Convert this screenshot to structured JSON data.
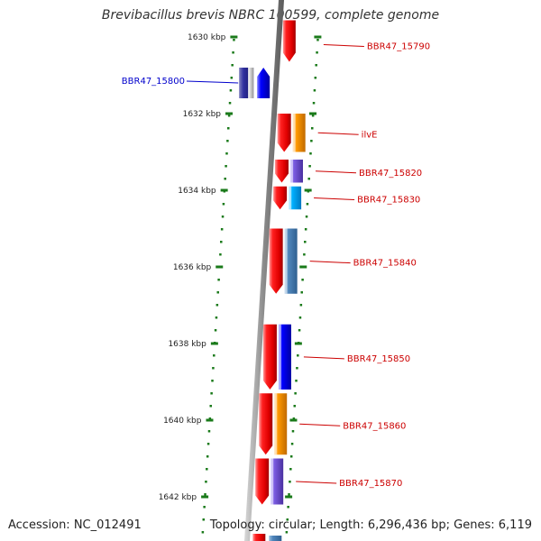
{
  "title": "Brevibacillus brevis NBRC 100599, complete genome",
  "footer": {
    "accession": "Accession: NC_012491",
    "summary": "Topology: circular; Length: 6,296,436 bp; Genes: 6,119"
  },
  "ticks": [
    "1630 kbp",
    "1632 kbp",
    "1634 kbp",
    "1636 kbp",
    "1638 kbp",
    "1640 kbp",
    "1642 kbp"
  ],
  "genes": [
    {
      "label": "BBR47_15790",
      "strand": "reverse",
      "color": "#cc0000",
      "start_kbp": 1629.8,
      "end_kbp": 1630.6
    },
    {
      "label": "BBR47_15800",
      "strand": "reverse",
      "color": "#0000cc",
      "start_kbp": 1630.8,
      "end_kbp": 1631.6
    },
    {
      "label": "ilvE",
      "strand": "forward",
      "color": "#cc0000",
      "start_kbp": 1632.0,
      "end_kbp": 1633.0
    },
    {
      "label": "BBR47_15820",
      "strand": "forward",
      "color": "#cc0000",
      "start_kbp": 1633.2,
      "end_kbp": 1633.8
    },
    {
      "label": "BBR47_15830",
      "strand": "forward",
      "color": "#cc0000",
      "start_kbp": 1633.9,
      "end_kbp": 1634.5
    },
    {
      "label": "BBR47_15840",
      "strand": "forward",
      "color": "#cc0000",
      "start_kbp": 1635.0,
      "end_kbp": 1636.7
    },
    {
      "label": "BBR47_15850",
      "strand": "forward",
      "color": "#cc0000",
      "start_kbp": 1637.5,
      "end_kbp": 1639.2
    },
    {
      "label": "BBR47_15860",
      "strand": "forward",
      "color": "#cc0000",
      "start_kbp": 1639.3,
      "end_kbp": 1640.9
    },
    {
      "label": "BBR47_15870",
      "strand": "forward",
      "color": "#cc0000",
      "start_kbp": 1641.0,
      "end_kbp": 1642.2
    }
  ]
}
